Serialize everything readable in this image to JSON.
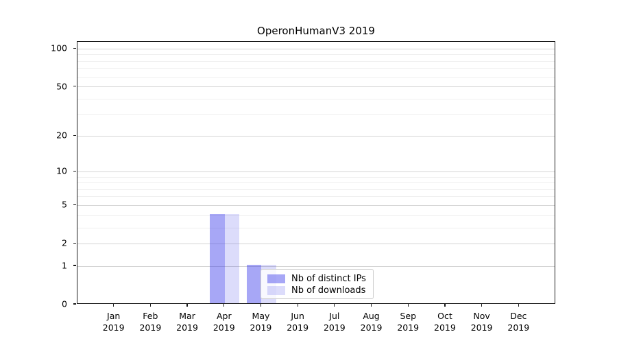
{
  "chart_data": {
    "type": "bar",
    "title": "OperonHumanV3 2019",
    "categories": [
      "Jan",
      "Feb",
      "Mar",
      "Apr",
      "May",
      "Jun",
      "Jul",
      "Aug",
      "Sep",
      "Oct",
      "Nov",
      "Dec"
    ],
    "category_year": "2019",
    "series": [
      {
        "name": "Nb of distinct IPs",
        "color": "rgba(60,60,235,0.45)",
        "values": [
          0,
          0,
          0,
          4,
          1,
          0,
          0,
          0,
          0,
          0,
          0,
          0
        ]
      },
      {
        "name": "Nb of downloads",
        "color": "rgba(60,60,235,0.18)",
        "values": [
          0,
          0,
          0,
          4,
          1,
          0,
          0,
          0,
          0,
          0,
          0,
          0
        ]
      }
    ],
    "y_scale": "log1p",
    "y_major_ticks": [
      0,
      1,
      2,
      5,
      10,
      20,
      50,
      100
    ],
    "y_minor_ticks": [
      3,
      4,
      6,
      7,
      8,
      9,
      30,
      40,
      60,
      70,
      80,
      90
    ],
    "ylim": [
      0,
      114
    ],
    "xlim": [
      -1,
      12
    ],
    "bar_width_units": 0.4,
    "grid": "horizontal",
    "legend_position": "lower-center",
    "colors": {
      "major_grid": "#d4d4d4",
      "minor_grid": "#efefef",
      "axis": "#1a1a1a",
      "background": "#ffffff"
    }
  }
}
